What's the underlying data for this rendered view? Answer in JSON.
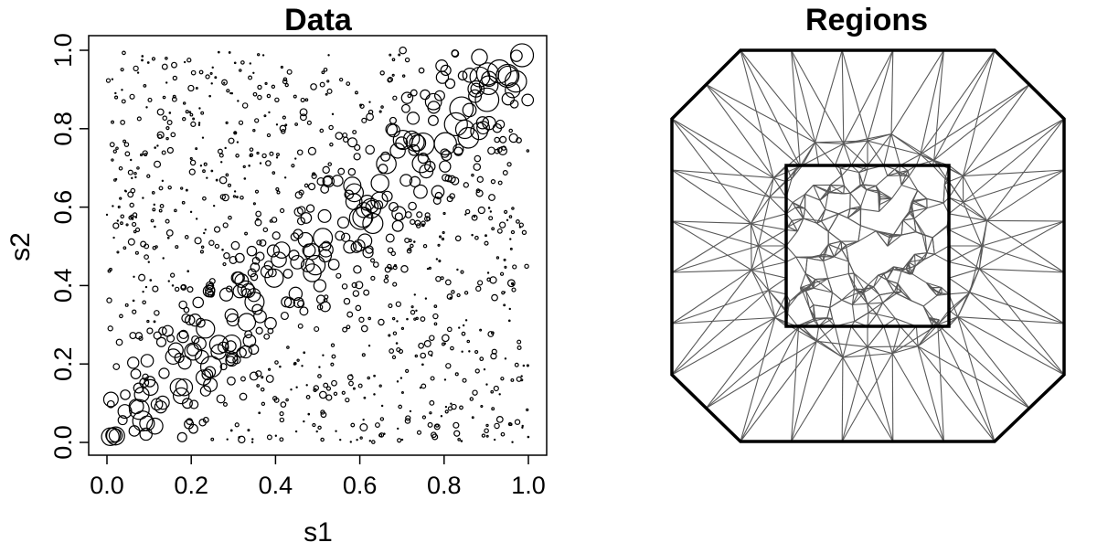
{
  "chart_data": [
    {
      "type": "scatter",
      "title": "Data",
      "xlabel": "s1",
      "ylabel": "s2",
      "xlim": [
        0,
        1
      ],
      "ylim": [
        0,
        1
      ],
      "xticks": [
        "0.0",
        "0.2",
        "0.4",
        "0.6",
        "0.8",
        "1.0"
      ],
      "yticks": [
        "0.0",
        "0.2",
        "0.4",
        "0.6",
        "0.8",
        "1.0"
      ],
      "marker": "open-circle",
      "marker_color": "#000000",
      "point_count": 1000,
      "size_pattern": "circle size grows with value; large circles cluster along diagonal from (0.3,0.3) to (0.95,0.95), small/dot markers elsewhere",
      "grid": false,
      "points_sample": [
        {
          "x": 0.91,
          "y": 0.98,
          "size": 10
        },
        {
          "x": 0.96,
          "y": 0.97,
          "size": 9
        },
        {
          "x": 0.88,
          "y": 0.87,
          "size": 9
        },
        {
          "x": 0.74,
          "y": 0.79,
          "size": 8
        },
        {
          "x": 0.67,
          "y": 0.68,
          "size": 8
        },
        {
          "x": 0.52,
          "y": 0.51,
          "size": 7
        },
        {
          "x": 0.28,
          "y": 0.3,
          "size": 7
        },
        {
          "x": 0.35,
          "y": 0.34,
          "size": 6
        },
        {
          "x": 0.06,
          "y": 0.08,
          "size": 5
        },
        {
          "x": 0.15,
          "y": 0.2,
          "size": 4
        },
        {
          "x": 0.2,
          "y": 0.8,
          "size": 2
        },
        {
          "x": 0.8,
          "y": 0.1,
          "size": 3
        }
      ]
    },
    {
      "type": "mesh",
      "title": "Regions",
      "outer_boundary": "octagon",
      "inner_boundary": "square",
      "inner_domain": {
        "xlim": [
          0,
          1
        ],
        "ylim": [
          0,
          1
        ]
      },
      "edge_color": "#595959",
      "boundary_color": "#000000"
    }
  ]
}
